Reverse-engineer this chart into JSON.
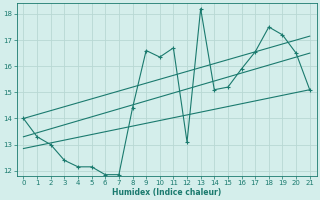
{
  "xlabel": "Humidex (Indice chaleur)",
  "ylabel": "",
  "bg_color": "#d4eeeb",
  "grid_color": "#b8d8d4",
  "line_color": "#1a7a6e",
  "xlim": [
    -0.5,
    21.5
  ],
  "ylim": [
    11.8,
    18.4
  ],
  "xticks": [
    0,
    1,
    2,
    3,
    4,
    5,
    6,
    7,
    8,
    9,
    10,
    11,
    12,
    13,
    14,
    15,
    16,
    17,
    18,
    19,
    20,
    21
  ],
  "yticks": [
    12,
    13,
    14,
    15,
    16,
    17,
    18
  ],
  "main_line_x": [
    0,
    1,
    2,
    3,
    4,
    5,
    6,
    7,
    8,
    9,
    10,
    11,
    12,
    13,
    14,
    15,
    16,
    17,
    18,
    19,
    20,
    21
  ],
  "main_line_y": [
    14.0,
    13.3,
    13.0,
    12.4,
    12.15,
    12.15,
    11.85,
    11.85,
    14.4,
    16.6,
    16.35,
    16.7,
    13.1,
    18.2,
    15.1,
    15.2,
    15.9,
    16.55,
    17.5,
    17.2,
    16.5,
    15.1
  ],
  "upper_line_x": [
    0,
    21
  ],
  "upper_line_y": [
    14.0,
    17.15
  ],
  "lower_line_x": [
    0,
    21
  ],
  "lower_line_y": [
    12.85,
    15.1
  ],
  "mid_line_x": [
    0,
    21
  ],
  "mid_line_y": [
    13.3,
    16.5
  ]
}
